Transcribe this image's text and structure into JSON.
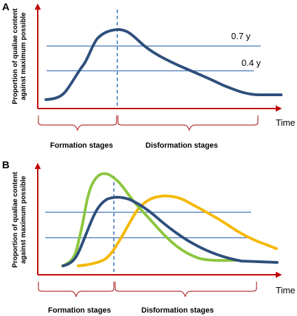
{
  "colors": {
    "axis": "#c00000",
    "brace": "#b03030",
    "reference_line": "#3a6fb5",
    "dashed_marker": "#2f6fb8",
    "series_main": "#2e4f7c",
    "series_green": "#8cc63f",
    "series_yellow": "#f5b800"
  },
  "panel_a": {
    "label": "A",
    "ylabel_line1": "Proportion of qualiae content",
    "ylabel_line2": "against maximum  possible",
    "x_label": "Time",
    "levels": [
      {
        "value": 0.7,
        "label": "0.7 y"
      },
      {
        "value": 0.4,
        "label": "0.4 y"
      }
    ],
    "stages": [
      {
        "label": "Formation stages"
      },
      {
        "label": "Disformation stages"
      }
    ]
  },
  "panel_b": {
    "label": "B",
    "ylabel_line1": "Proportion of qualiae content",
    "ylabel_line2": "against maximum  possible",
    "x_label": "Time",
    "stages": [
      {
        "label": "Formation stages"
      },
      {
        "label": "Disformation stages"
      }
    ]
  },
  "chart_data": [
    {
      "type": "line",
      "panel": "A",
      "x_axis": "Time",
      "y_axis": "Proportion of qualiae content against maximum possible",
      "reference_levels": [
        0.7,
        0.4
      ],
      "x": [
        0.0,
        0.05,
        0.1,
        0.15,
        0.2,
        0.25,
        0.3,
        0.35,
        0.4,
        0.5,
        0.6,
        0.7,
        0.8,
        0.9,
        1.0
      ],
      "series": [
        {
          "color": "#2e4f7c",
          "values": [
            0.05,
            0.07,
            0.15,
            0.32,
            0.6,
            0.86,
            0.98,
            0.97,
            0.9,
            0.72,
            0.56,
            0.42,
            0.27,
            0.12,
            0.12
          ]
        }
      ]
    },
    {
      "type": "line",
      "panel": "B",
      "x_axis": "Time",
      "y_axis": "Proportion of qualiae content against maximum possible",
      "x": [
        0.0,
        0.05,
        0.1,
        0.15,
        0.2,
        0.25,
        0.3,
        0.35,
        0.4,
        0.5,
        0.6,
        0.7,
        0.8,
        0.9,
        1.0
      ],
      "series": [
        {
          "color": "#8cc63f",
          "values": [
            0.02,
            0.1,
            0.6,
            0.98,
            0.99,
            0.9,
            0.62,
            0.48,
            0.36,
            0.28,
            0.1,
            0.03,
            null,
            null,
            null
          ]
        },
        {
          "color": "#2e4f7c",
          "values": [
            0.02,
            0.05,
            0.2,
            0.5,
            0.74,
            0.8,
            0.78,
            0.7,
            0.58,
            0.42,
            0.26,
            0.12,
            0.05,
            0.05,
            null
          ]
        },
        {
          "color": "#f5b800",
          "values": [
            null,
            null,
            null,
            0.02,
            0.05,
            0.22,
            0.54,
            0.73,
            0.76,
            0.68,
            0.54,
            0.38,
            0.22,
            0.12,
            0.04
          ]
        }
      ]
    }
  ]
}
